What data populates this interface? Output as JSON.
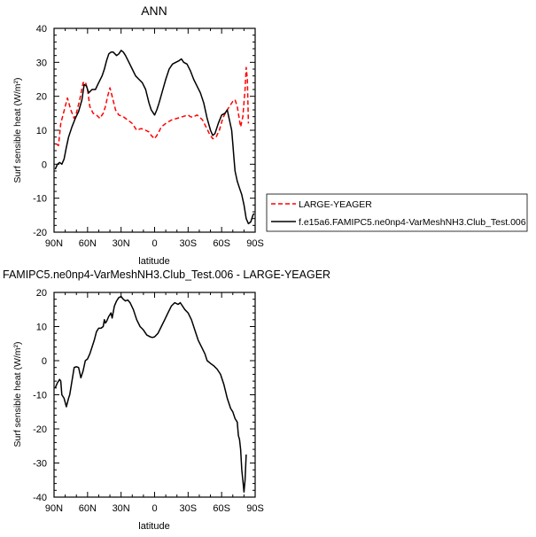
{
  "chart_data": [
    {
      "type": "line",
      "title": "ANN",
      "xlabel": "latitude",
      "ylabel": "Surf sensible heat (W/m²)",
      "xlim": [
        90,
        -90
      ],
      "ylim": [
        -20,
        40
      ],
      "xticks": [
        90,
        60,
        30,
        0,
        -30,
        -60,
        -90
      ],
      "xtick_labels": [
        "90N",
        "60N",
        "30N",
        "0",
        "30S",
        "60S",
        "90S"
      ],
      "yticks": [
        -20,
        -10,
        0,
        10,
        20,
        30,
        40
      ],
      "ytick_labels": [
        "-20",
        "-10",
        "0",
        "10",
        "20",
        "30",
        "40"
      ],
      "legend_position": "right",
      "series": [
        {
          "name": "LARGE-YEAGER",
          "color": "#ff0000",
          "dash": true,
          "points": [
            [
              88,
              6
            ],
            [
              86,
              5.5
            ],
            [
              84,
              12
            ],
            [
              80,
              17
            ],
            [
              78,
              19.5
            ],
            [
              75,
              16
            ],
            [
              72,
              13.5
            ],
            [
              70,
              15
            ],
            [
              67,
              19
            ],
            [
              64,
              24
            ],
            [
              62,
              24.3
            ],
            [
              60,
              22
            ],
            [
              58,
              17
            ],
            [
              55,
              15
            ],
            [
              52,
              14.5
            ],
            [
              49,
              13.5
            ],
            [
              46,
              15
            ],
            [
              44,
              17
            ],
            [
              42,
              20
            ],
            [
              40,
              22.5
            ],
            [
              38,
              20
            ],
            [
              35,
              16
            ],
            [
              32,
              14.5
            ],
            [
              28,
              14
            ],
            [
              24,
              13
            ],
            [
              20,
              12
            ],
            [
              16,
              10
            ],
            [
              12,
              10.5
            ],
            [
              8,
              10
            ],
            [
              5,
              9.5
            ],
            [
              3,
              8.5
            ],
            [
              0,
              7.5
            ],
            [
              -3,
              9
            ],
            [
              -6,
              11
            ],
            [
              -10,
              12
            ],
            [
              -15,
              13
            ],
            [
              -20,
              13.5
            ],
            [
              -25,
              14
            ],
            [
              -30,
              14.5
            ],
            [
              -32,
              14
            ],
            [
              -34,
              13.8
            ],
            [
              -38,
              14.5
            ],
            [
              -40,
              14
            ],
            [
              -43,
              13
            ],
            [
              -46,
              11
            ],
            [
              -49,
              9
            ],
            [
              -52,
              7.5
            ],
            [
              -55,
              8
            ],
            [
              -58,
              10
            ],
            [
              -61,
              13.5
            ],
            [
              -64,
              15.5
            ],
            [
              -67,
              17
            ],
            [
              -70,
              18.5
            ],
            [
              -72,
              19
            ],
            [
              -74,
              17
            ],
            [
              -76,
              13
            ],
            [
              -77,
              11
            ],
            [
              -79,
              14
            ],
            [
              -81,
              22
            ],
            [
              -82,
              28.5
            ],
            [
              -83,
              25
            ],
            [
              -84,
              12
            ]
          ]
        },
        {
          "name": "f.e15a6.FAMIPC5.ne0np4-VarMeshNH3.Club_Test.006",
          "color": "#000000",
          "dash": false,
          "points": [
            [
              89,
              -1.5
            ],
            [
              87,
              0
            ],
            [
              85,
              0.5
            ],
            [
              83,
              0
            ],
            [
              81,
              1.5
            ],
            [
              79,
              5
            ],
            [
              77,
              8
            ],
            [
              74,
              11
            ],
            [
              71,
              13.5
            ],
            [
              68,
              15.5
            ],
            [
              65,
              19
            ],
            [
              63,
              23.5
            ],
            [
              61,
              23
            ],
            [
              59,
              21
            ],
            [
              56,
              22
            ],
            [
              53,
              22
            ],
            [
              50,
              24
            ],
            [
              47,
              26
            ],
            [
              45,
              28
            ],
            [
              43,
              30.5
            ],
            [
              41,
              32.5
            ],
            [
              39,
              33
            ],
            [
              37,
              33
            ],
            [
              34,
              32
            ],
            [
              32,
              32.5
            ],
            [
              30,
              33.5
            ],
            [
              28,
              33
            ],
            [
              26,
              32
            ],
            [
              23,
              30
            ],
            [
              20,
              28
            ],
            [
              17,
              26
            ],
            [
              14,
              25
            ],
            [
              11,
              24
            ],
            [
              8,
              22
            ],
            [
              5,
              18
            ],
            [
              3,
              16
            ],
            [
              1,
              15
            ],
            [
              0,
              14.5
            ],
            [
              -2,
              16
            ],
            [
              -4,
              18
            ],
            [
              -7,
              21.5
            ],
            [
              -10,
              25
            ],
            [
              -13,
              28
            ],
            [
              -16,
              29.5
            ],
            [
              -19,
              30
            ],
            [
              -22,
              30.5
            ],
            [
              -24,
              31
            ],
            [
              -26,
              30
            ],
            [
              -29,
              29.5
            ],
            [
              -32,
              27.5
            ],
            [
              -35,
              25
            ],
            [
              -38,
              23
            ],
            [
              -41,
              21
            ],
            [
              -44,
              18
            ],
            [
              -47,
              13.5
            ],
            [
              -50,
              10
            ],
            [
              -52,
              8.5
            ],
            [
              -54,
              9
            ],
            [
              -57,
              12
            ],
            [
              -60,
              14.5
            ],
            [
              -63,
              15
            ],
            [
              -65,
              16
            ],
            [
              -67,
              13
            ],
            [
              -69,
              10
            ],
            [
              -70,
              6
            ],
            [
              -71,
              2
            ],
            [
              -72,
              -2
            ],
            [
              -74,
              -5
            ],
            [
              -76,
              -7
            ],
            [
              -78,
              -9
            ],
            [
              -80,
              -12
            ],
            [
              -82,
              -16
            ],
            [
              -84,
              -17.5
            ],
            [
              -86,
              -17
            ],
            [
              -88,
              -15
            ],
            [
              -89,
              -14.5
            ]
          ]
        }
      ]
    },
    {
      "type": "line",
      "title": "FAMIPC5.ne0np4-VarMeshNH3.Club_Test.006 - LARGE-YEAGER",
      "xlabel": "latitude",
      "ylabel": "Surf sensible heat (W/m²)",
      "xlim": [
        90,
        -90
      ],
      "ylim": [
        -40,
        20
      ],
      "xticks": [
        90,
        60,
        30,
        0,
        -30,
        -60,
        -90
      ],
      "xtick_labels": [
        "90N",
        "60N",
        "30N",
        "0",
        "30S",
        "60S",
        "90S"
      ],
      "yticks": [
        -40,
        -30,
        -20,
        -10,
        0,
        10,
        20
      ],
      "ytick_labels": [
        "-40",
        "-30",
        "-20",
        "-10",
        "0",
        "10",
        "20"
      ],
      "series": [
        {
          "color": "#000000",
          "dash": false,
          "points": [
            [
              89,
              -8
            ],
            [
              87,
              -6.5
            ],
            [
              85,
              -5.5
            ],
            [
              84,
              -6
            ],
            [
              83,
              -10
            ],
            [
              81,
              -11
            ],
            [
              79,
              -13.5
            ],
            [
              77,
              -11
            ],
            [
              76,
              -10
            ],
            [
              74,
              -6
            ],
            [
              72,
              -2
            ],
            [
              70,
              -1.8
            ],
            [
              68,
              -2
            ],
            [
              66,
              -5
            ],
            [
              64,
              -3
            ],
            [
              62,
              0
            ],
            [
              60,
              0.5
            ],
            [
              58,
              2
            ],
            [
              56,
              4
            ],
            [
              54,
              6
            ],
            [
              52,
              8.5
            ],
            [
              50,
              9.5
            ],
            [
              48,
              9.5
            ],
            [
              46,
              10
            ],
            [
              45,
              12
            ],
            [
              44,
              11
            ],
            [
              43,
              11.5
            ],
            [
              41,
              13
            ],
            [
              39,
              14
            ],
            [
              38,
              12.5
            ],
            [
              36,
              16
            ],
            [
              34,
              17.5
            ],
            [
              32,
              18.5
            ],
            [
              30,
              18.8
            ],
            [
              28,
              18
            ],
            [
              26,
              17.5
            ],
            [
              24,
              17.8
            ],
            [
              22,
              17
            ],
            [
              19,
              15
            ],
            [
              16,
              12
            ],
            [
              13,
              10
            ],
            [
              10,
              9
            ],
            [
              7,
              7.5
            ],
            [
              4,
              7
            ],
            [
              2,
              6.8
            ],
            [
              0,
              7
            ],
            [
              -3,
              8
            ],
            [
              -6,
              10
            ],
            [
              -9,
              12
            ],
            [
              -12,
              14
            ],
            [
              -15,
              16
            ],
            [
              -18,
              17
            ],
            [
              -21,
              16.5
            ],
            [
              -23,
              17
            ],
            [
              -25,
              16
            ],
            [
              -27,
              15
            ],
            [
              -30,
              14
            ],
            [
              -33,
              12
            ],
            [
              -36,
              9
            ],
            [
              -39,
              6
            ],
            [
              -42,
              4
            ],
            [
              -45,
              2
            ],
            [
              -47,
              0
            ],
            [
              -50,
              -0.8
            ],
            [
              -53,
              -1.5
            ],
            [
              -56,
              -2.5
            ],
            [
              -59,
              -4
            ],
            [
              -62,
              -7
            ],
            [
              -65,
              -11
            ],
            [
              -68,
              -14
            ],
            [
              -70,
              -15
            ],
            [
              -72,
              -17
            ],
            [
              -74,
              -18
            ],
            [
              -75,
              -22
            ],
            [
              -76,
              -23
            ],
            [
              -77,
              -26
            ],
            [
              -78,
              -32
            ],
            [
              -79,
              -35
            ],
            [
              -80,
              -38.5
            ],
            [
              -81,
              -35
            ],
            [
              -82,
              -27.5
            ]
          ]
        }
      ]
    }
  ]
}
